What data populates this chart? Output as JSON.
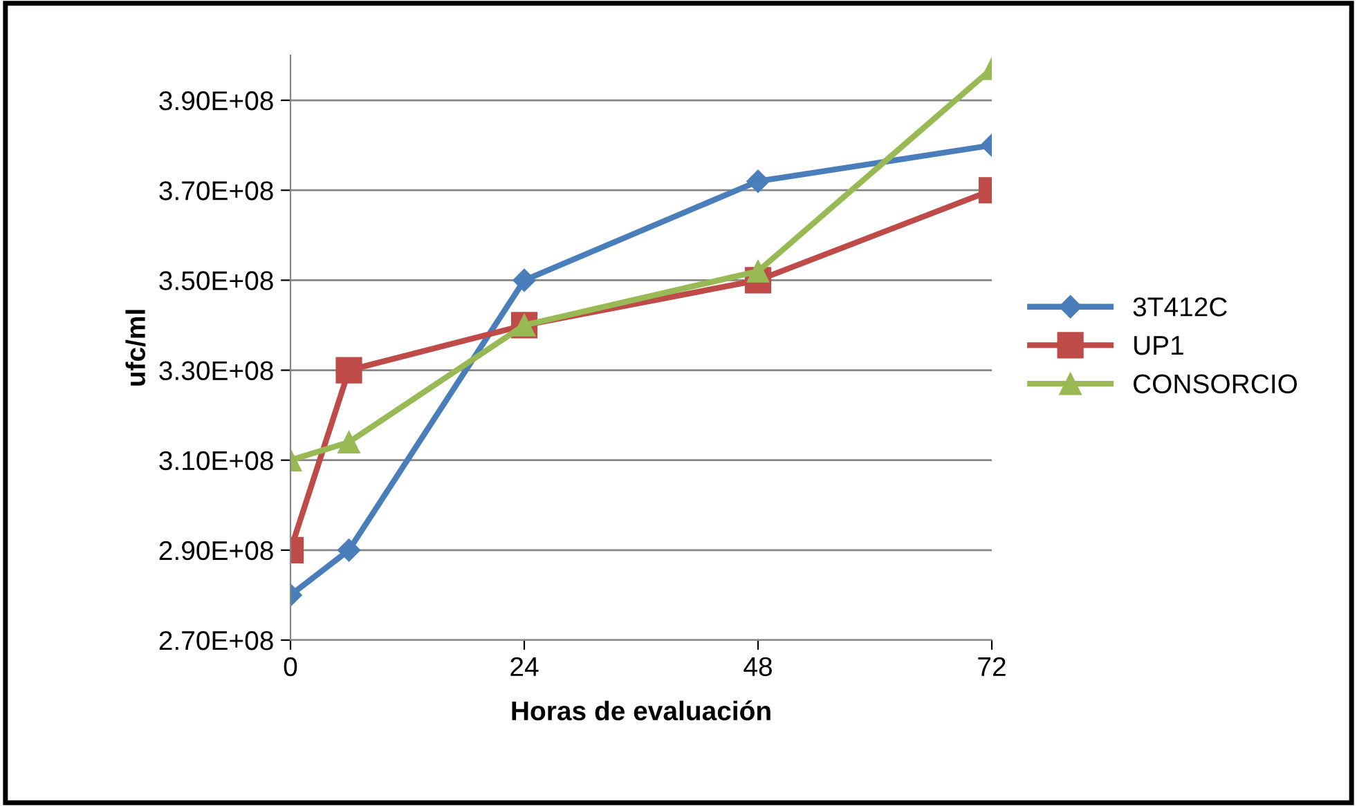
{
  "chart_data": {
    "type": "line",
    "xlabel": "Horas de evaluación",
    "ylabel": "ufc/ml",
    "x": [
      0,
      6,
      24,
      48,
      72
    ],
    "series": [
      {
        "name": "3T412C",
        "color": "#4a7ebb",
        "marker": "diamond",
        "values": [
          280000000,
          290000000,
          350000000,
          372000000,
          380000000
        ]
      },
      {
        "name": "UP1",
        "color": "#be4b48",
        "marker": "square",
        "values": [
          290000000,
          330000000,
          340000000,
          350000000,
          370000000
        ]
      },
      {
        "name": "CONSORCIO",
        "color": "#98b954",
        "marker": "triangle",
        "values": [
          310000000,
          314000000,
          340000000,
          352000000,
          397000000
        ]
      }
    ],
    "xlim": [
      0,
      72
    ],
    "xticks": [
      0,
      24,
      48,
      72
    ],
    "ylim": [
      270000000,
      400000000
    ],
    "yticks": [
      {
        "value": 270000000,
        "label": "2.70E+08"
      },
      {
        "value": 290000000,
        "label": "2.90E+08"
      },
      {
        "value": 310000000,
        "label": "3.10E+08"
      },
      {
        "value": 330000000,
        "label": "3.30E+08"
      },
      {
        "value": 350000000,
        "label": "3.50E+08"
      },
      {
        "value": 370000000,
        "label": "3.70E+08"
      },
      {
        "value": 390000000,
        "label": "3.90E+08"
      }
    ],
    "grid": "y",
    "legend": "right",
    "line_style": "solid"
  }
}
